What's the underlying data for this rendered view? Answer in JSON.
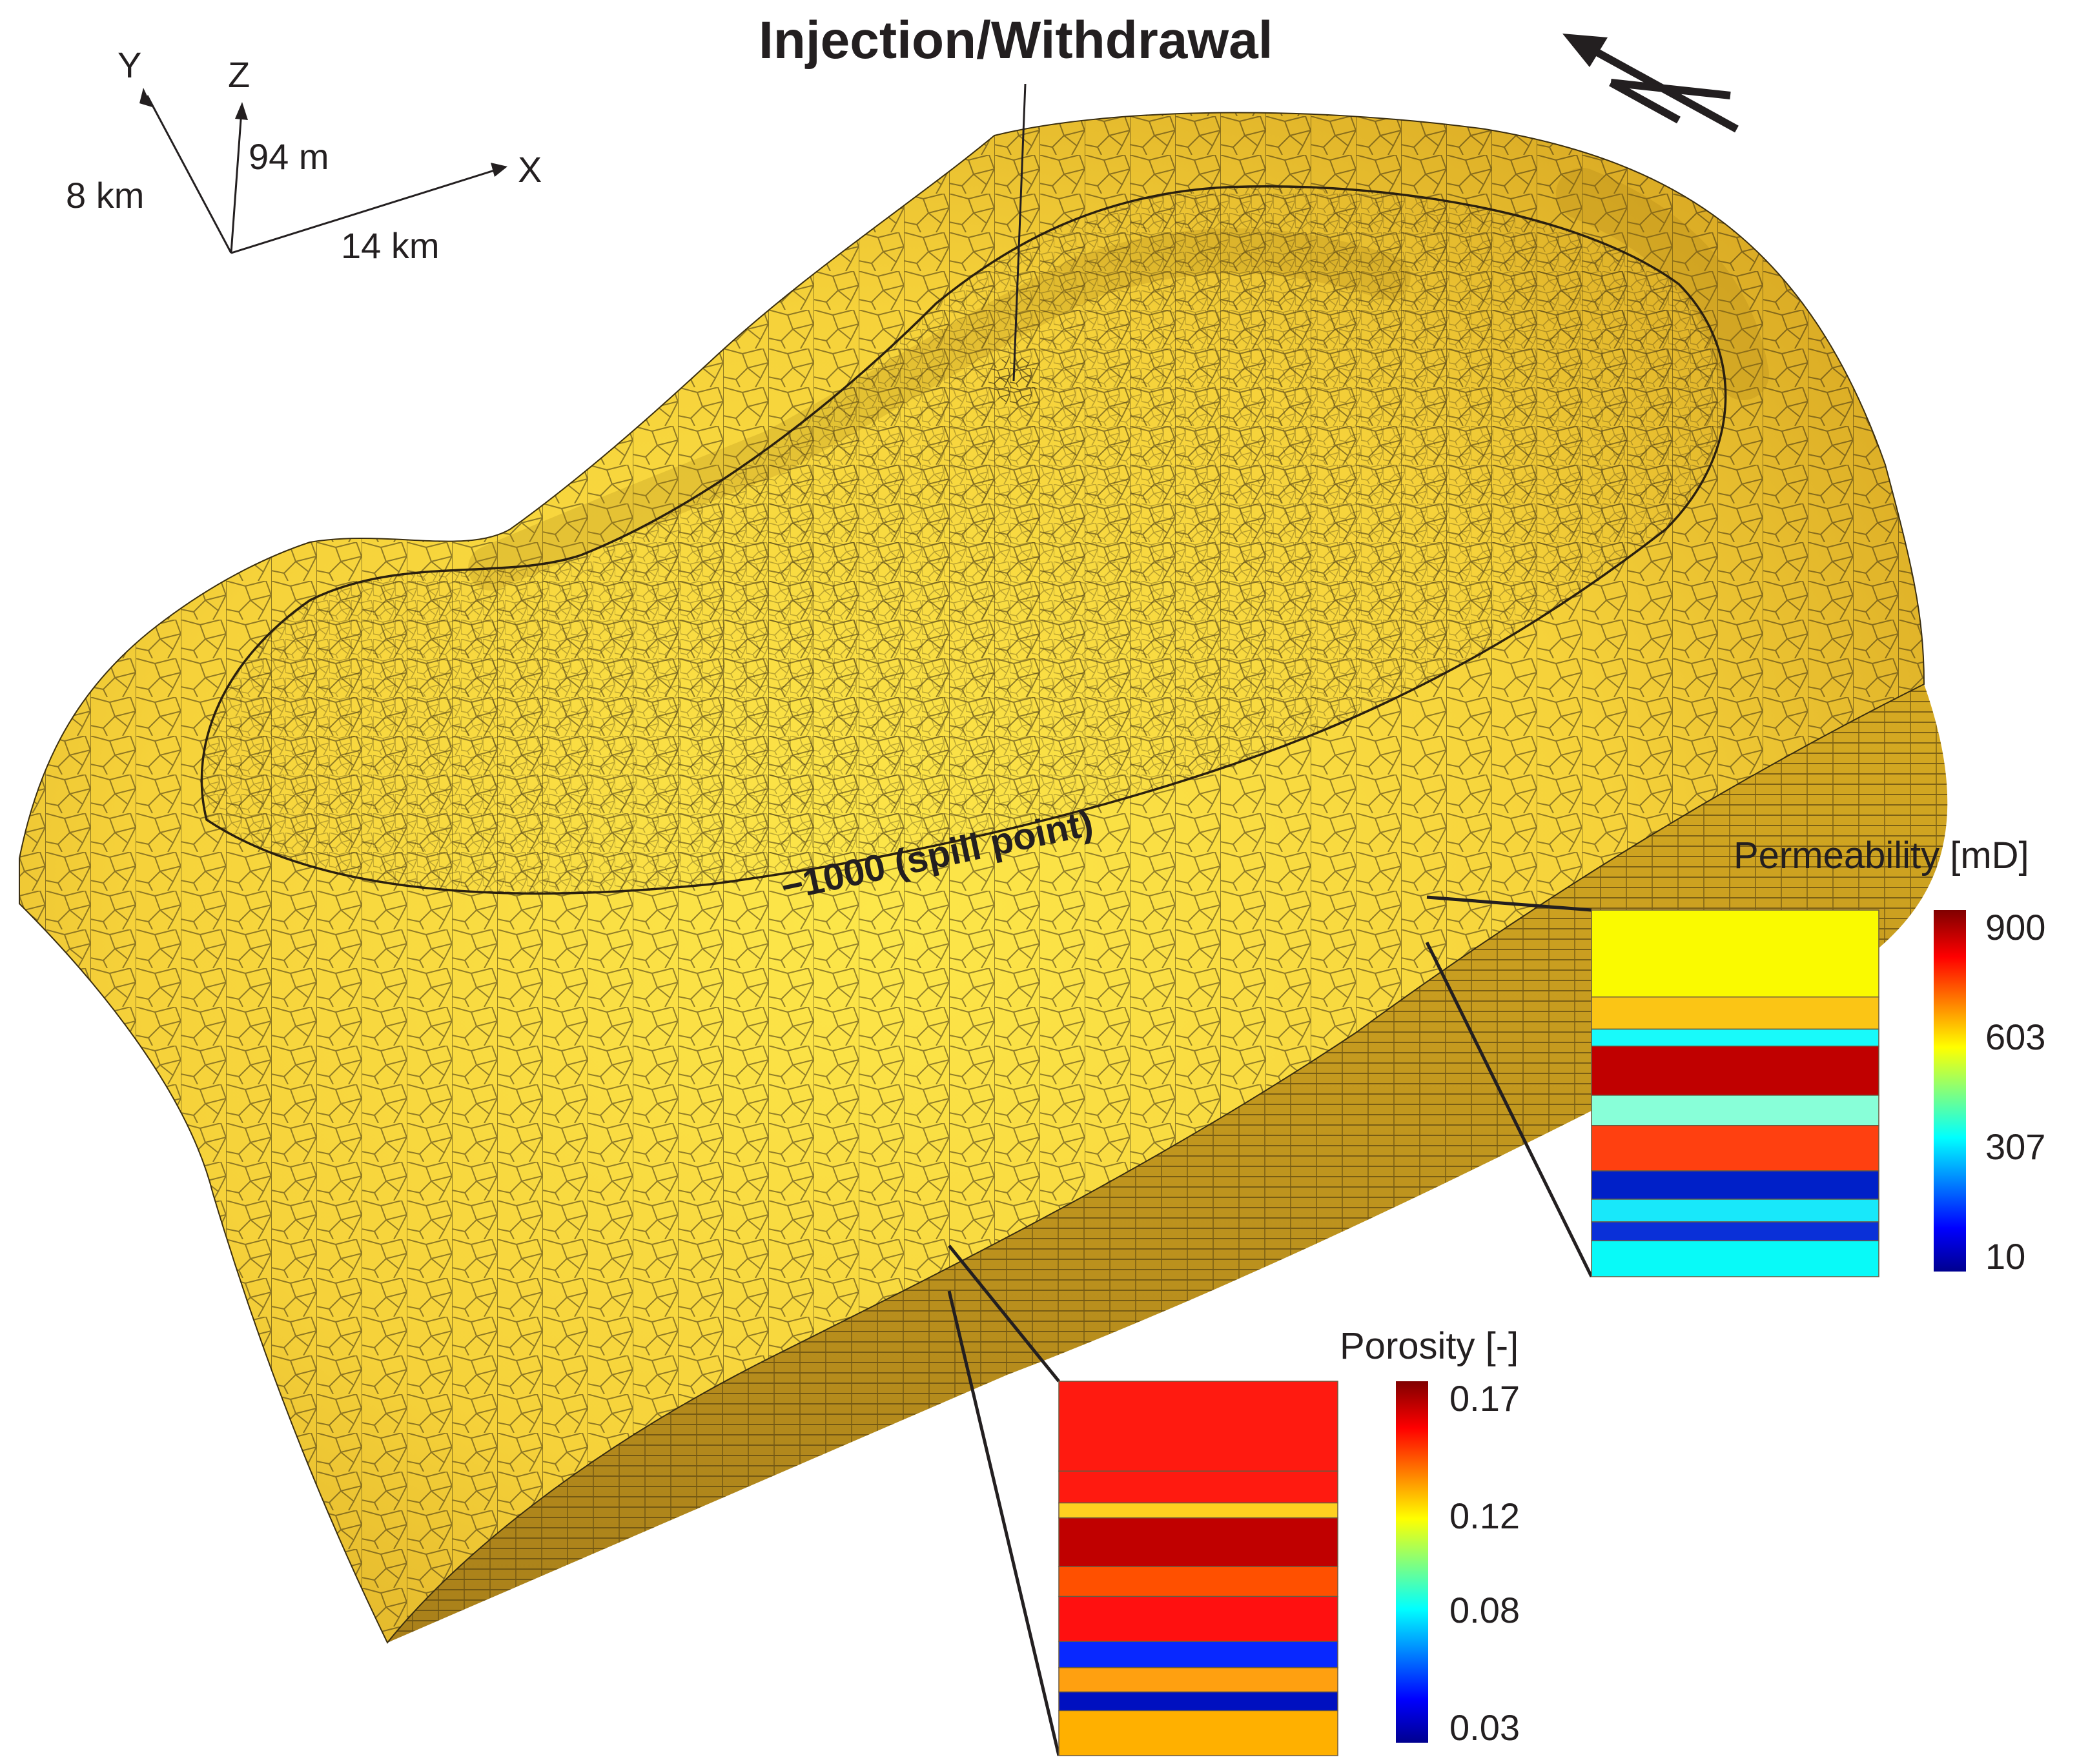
{
  "title": "Injection/Withdrawal",
  "spill_label": "−1000 (spill point)",
  "axes": {
    "y_label": "Y",
    "z_label": "Z",
    "x_label": "X",
    "y_length": "8 km",
    "z_length": "94 m",
    "x_length": "14 km"
  },
  "north_arrow_icon": "north-arrow-icon",
  "colors": {
    "mesh_fill": "#f0c82a",
    "mesh_top": "#fbe045",
    "mesh_dark": "#c79a1c",
    "mesh_side": "#c9a01c",
    "grid_line": "#3a2e10"
  },
  "permeability": {
    "title": "Permeability [mD]",
    "ticks": [
      "900",
      "603",
      "307",
      "10"
    ],
    "tick_values": [
      900,
      603,
      307,
      10
    ],
    "range": [
      10,
      900
    ],
    "layers": [
      {
        "color": "#fafa00",
        "thickness": 0.23
      },
      {
        "color": "#fbc515",
        "thickness": 0.085
      },
      {
        "color": "#18fafa",
        "thickness": 0.045
      },
      {
        "color": "#c00000",
        "thickness": 0.13
      },
      {
        "color": "#88ffd8",
        "thickness": 0.08
      },
      {
        "color": "#ff4010",
        "thickness": 0.12
      },
      {
        "color": "#0020c8",
        "thickness": 0.075
      },
      {
        "color": "#18e8fa",
        "thickness": 0.06
      },
      {
        "color": "#0a30d8",
        "thickness": 0.05
      },
      {
        "color": "#08faf8",
        "thickness": 0.095
      }
    ]
  },
  "porosity": {
    "title": "Porosity [-]",
    "ticks": [
      "0.17",
      "0.12",
      "0.08",
      "0.03"
    ],
    "tick_values": [
      0.17,
      0.12,
      0.08,
      0.03
    ],
    "range": [
      0.03,
      0.17
    ],
    "layers": [
      {
        "color": "#ff1a10",
        "thickness": 0.24
      },
      {
        "color": "#ff1a10",
        "thickness": 0.085
      },
      {
        "color": "#ffd020",
        "thickness": 0.04
      },
      {
        "color": "#c00000",
        "thickness": 0.13
      },
      {
        "color": "#ff5000",
        "thickness": 0.08
      },
      {
        "color": "#ff1010",
        "thickness": 0.12
      },
      {
        "color": "#0828ff",
        "thickness": 0.07
      },
      {
        "color": "#ffa010",
        "thickness": 0.065
      },
      {
        "color": "#0010c0",
        "thickness": 0.05
      },
      {
        "color": "#ffb000",
        "thickness": 0.12
      }
    ]
  }
}
